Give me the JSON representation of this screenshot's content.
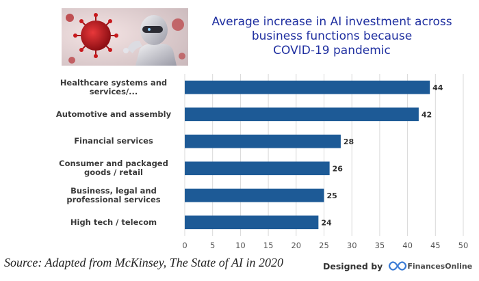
{
  "title_lines": [
    "Average increase in AI investment across",
    "business functions because",
    "COVID-19 pandemic"
  ],
  "chart_data": {
    "type": "bar",
    "orientation": "horizontal",
    "categories": [
      [
        "Healthcare systems and",
        "services/..."
      ],
      [
        "Automotive and assembly"
      ],
      [
        "Financial services"
      ],
      [
        "Consumer and packaged",
        "goods / retail"
      ],
      [
        "Business, legal and",
        "professional services"
      ],
      [
        "High tech / telecom"
      ]
    ],
    "values": [
      44,
      42,
      28,
      26,
      25,
      24
    ],
    "xlim": [
      0,
      50
    ],
    "xticks": [
      0,
      5,
      10,
      15,
      20,
      25,
      30,
      35,
      40,
      45,
      50
    ],
    "grid": true,
    "bar_color": "#1d5a96",
    "data_labels": true
  },
  "source_text": "Source: Adapted from McKinsey, The State of AI in 2020",
  "credit": {
    "designed_by": "Designed by",
    "brand": "FinancesOnline"
  },
  "colors": {
    "title": "#1f2fa0",
    "bar": "#1d5a96",
    "grid": "#d9d9d9"
  }
}
